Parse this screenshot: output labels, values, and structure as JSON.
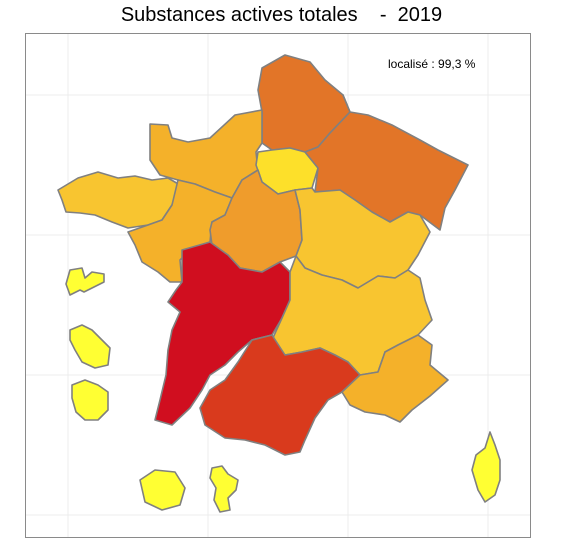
{
  "title": "Substances actives totales    -  2019",
  "annotation": "localisé : 99,3 %",
  "colors": {
    "very_high": "#d00e1f",
    "high": "#d93a1d",
    "medium_high": "#e27528",
    "medium": "#ef9c2c",
    "medium_low": "#f4b12a",
    "low": "#f8c530",
    "very_low": "#fde02a",
    "lowest": "#ffff33",
    "border": "#808080"
  },
  "regions": [
    {
      "name": "Hauts-de-France",
      "color": "#e27528"
    },
    {
      "name": "Normandie",
      "color": "#f4b12a"
    },
    {
      "name": "Île-de-France",
      "color": "#fde02a"
    },
    {
      "name": "Grand Est",
      "color": "#e27528"
    },
    {
      "name": "Bretagne",
      "color": "#f8c530"
    },
    {
      "name": "Pays de la Loire",
      "color": "#f4b12a"
    },
    {
      "name": "Centre-Val de Loire",
      "color": "#ef9c2c"
    },
    {
      "name": "Bourgogne-Franche-Comté",
      "color": "#f8c530"
    },
    {
      "name": "Nouvelle-Aquitaine",
      "color": "#d00e1f"
    },
    {
      "name": "Auvergne-Rhône-Alpes",
      "color": "#f8c530"
    },
    {
      "name": "Occitanie",
      "color": "#d93a1d"
    },
    {
      "name": "Provence-Alpes-Côte d'Azur",
      "color": "#f4b12a"
    },
    {
      "name": "Corse",
      "color": "#ffff33"
    },
    {
      "name": "Guadeloupe",
      "color": "#ffff33"
    },
    {
      "name": "Martinique",
      "color": "#ffff33"
    },
    {
      "name": "Guyane",
      "color": "#ffff33"
    },
    {
      "name": "La Réunion",
      "color": "#ffff33"
    },
    {
      "name": "Mayotte",
      "color": "#ffff33"
    }
  ]
}
